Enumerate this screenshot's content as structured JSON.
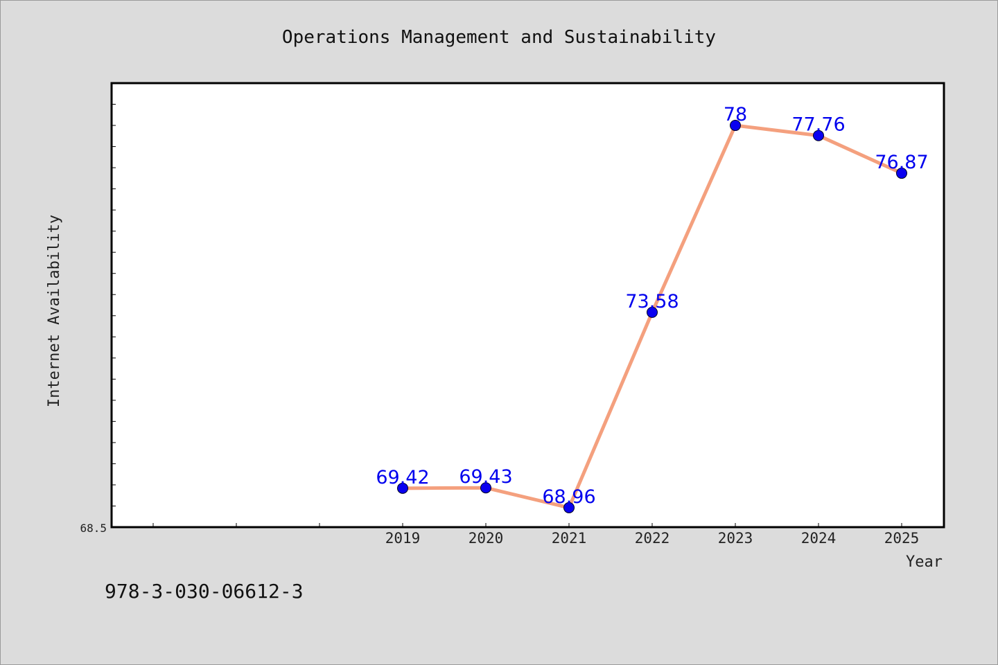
{
  "chart_data": {
    "type": "line",
    "title": "Operations Management and Sustainability",
    "xlabel": "Year",
    "ylabel": "Internet Availability",
    "categories": [
      "2019",
      "2020",
      "2021",
      "2022",
      "2023",
      "2024",
      "2025"
    ],
    "series": [
      {
        "values": [
          69.42,
          69.43,
          68.96,
          73.58,
          78,
          77.76,
          76.87
        ]
      }
    ],
    "data_labels": [
      "69.42",
      "69.43",
      "68.96",
      "73.58",
      "78",
      "77.76",
      "76.87"
    ],
    "y_tick_label": "68.5",
    "ylim": [
      68.5,
      79.0
    ],
    "grid": false,
    "line_color": "#f4a07e",
    "marker_color": "#0a00f0",
    "label_color": "#0000ee"
  },
  "footer": {
    "isbn": "978-3-030-06612-3"
  }
}
